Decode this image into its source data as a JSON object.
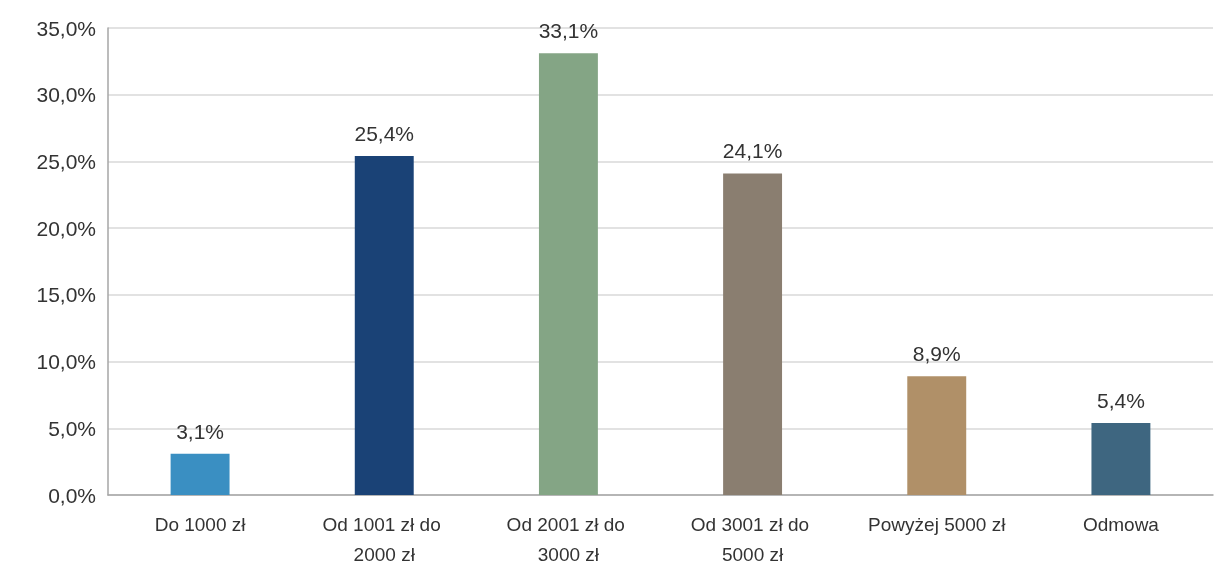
{
  "chart_data": {
    "type": "bar",
    "categories": [
      "Do 1000 zł",
      "Od 1001 zł do 2000 zł",
      "Od 2001 zł do 3000 zł",
      "Od 3001 zł do 5000 zł",
      "Powyżej 5000 zł",
      "Odmowa"
    ],
    "values": [
      3.1,
      25.4,
      33.1,
      24.1,
      8.9,
      5.4
    ],
    "colors": [
      "#3a8fc2",
      "#1a4276",
      "#84a585",
      "#8a7e70",
      "#b09068",
      "#3e6680"
    ],
    "value_labels": [
      "3,1%",
      "25,4%",
      "33,1%",
      "24,1%",
      "8,9%",
      "5,4%"
    ],
    "ylim": [
      0,
      35
    ],
    "yticks": [
      {
        "value": 0,
        "label": "0,0%"
      },
      {
        "value": 5,
        "label": "5,0%"
      },
      {
        "value": 10,
        "label": "10,0%"
      },
      {
        "value": 15,
        "label": "15,0%"
      },
      {
        "value": 20,
        "label": "20,0%"
      },
      {
        "value": 25,
        "label": "25,0%"
      },
      {
        "value": 30,
        "label": "30,0%"
      },
      {
        "value": 35,
        "label": "35,0%"
      }
    ],
    "grid": "y"
  }
}
